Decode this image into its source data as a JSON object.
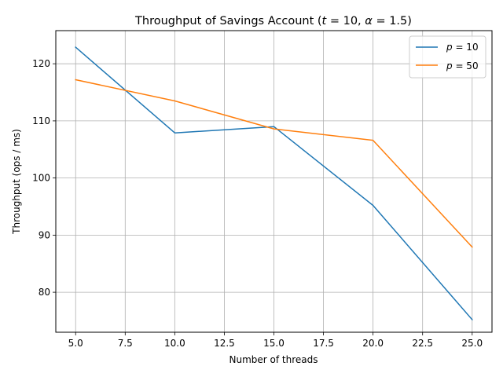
{
  "chart_data": {
    "type": "line",
    "title": "Throughput of Savings Account (t = 10, α = 1.5)",
    "title_parts": {
      "prefix": "Throughput of Savings Account (",
      "t_var": "t",
      "t_value": " = 10, ",
      "alpha_var": "α",
      "alpha_value": " = 1.5)"
    },
    "xlabel": "Number of threads",
    "ylabel": "Throughput (ops / ms)",
    "xlim": [
      4.0,
      26.0
    ],
    "ylim": [
      73.0,
      125.8
    ],
    "xticks": [
      5.0,
      7.5,
      10.0,
      12.5,
      15.0,
      17.5,
      20.0,
      22.5,
      25.0
    ],
    "xtick_labels": [
      "5.0",
      "7.5",
      "10.0",
      "12.5",
      "15.0",
      "17.5",
      "20.0",
      "22.5",
      "25.0"
    ],
    "yticks": [
      80,
      90,
      100,
      110,
      120
    ],
    "ytick_labels": [
      "80",
      "90",
      "100",
      "110",
      "120"
    ],
    "grid": true,
    "legend_position": "top-right",
    "x": [
      5,
      10,
      15,
      20,
      25
    ],
    "series": [
      {
        "name": "p = 10",
        "name_var": "p",
        "name_value": " = 10",
        "color": "#1f77b4",
        "values": [
          122.9,
          107.9,
          109.0,
          95.2,
          75.2
        ]
      },
      {
        "name": "p = 50",
        "name_var": "p",
        "name_value": " = 50",
        "color": "#ff7f0e",
        "values": [
          117.2,
          113.5,
          108.6,
          106.6,
          87.9
        ]
      }
    ]
  }
}
